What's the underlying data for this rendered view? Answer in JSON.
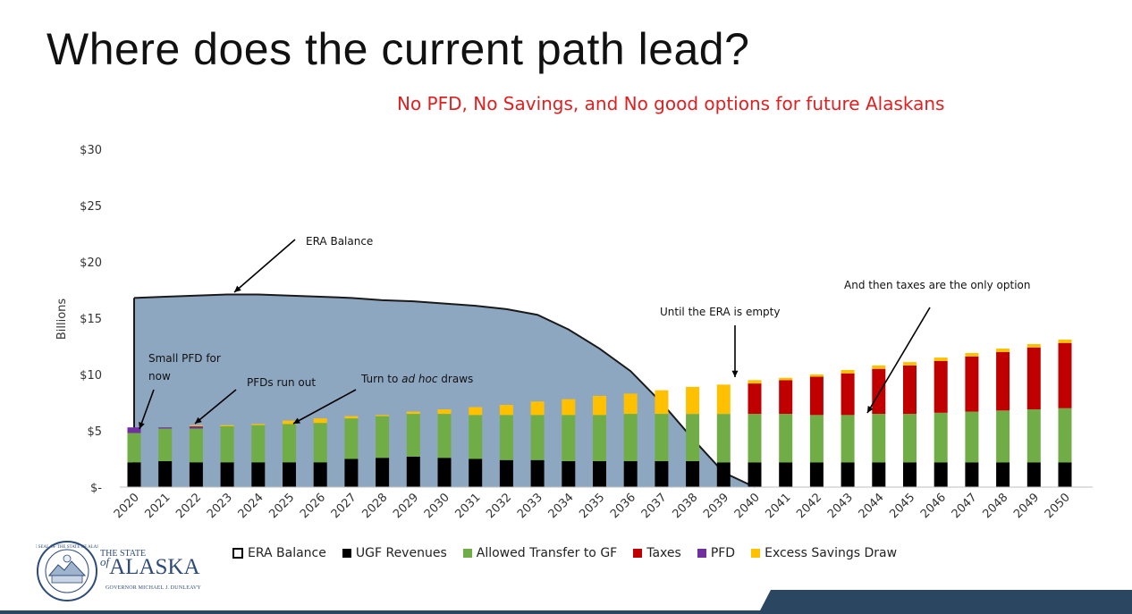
{
  "title": "Where does the current path lead?",
  "subtitle": "No PFD, No Savings, and No good options for future Alaskans",
  "logo": {
    "line1": "THE STATE",
    "line2_prefix": "of",
    "line2": "ALASKA",
    "line3": "GOVERNOR MICHAEL J. DUNLEAVY",
    "seal_text": "THE SEAL OF THE STATE OF ALASKA"
  },
  "colors": {
    "era_fill": "#8ea7c1",
    "era_line": "#1a1a1a",
    "ugf": "#000000",
    "transfer": "#70ad47",
    "taxes": "#c00000",
    "pfd": "#7030a0",
    "excess": "#ffc000",
    "subtitle": "#e02020",
    "brand_blue": "#2a4661"
  },
  "chart_data": {
    "type": "bar",
    "stacked": true,
    "ylabel": "Billions",
    "ylim": [
      0,
      30
    ],
    "yticks": [
      0,
      5,
      10,
      15,
      20,
      25,
      30
    ],
    "ytick_labels": [
      "$-",
      "$5",
      "$10",
      "$15",
      "$20",
      "$25",
      "$30"
    ],
    "grid": false,
    "legend_position": "bottom",
    "categories": [
      "2020",
      "2021",
      "2022",
      "2023",
      "2024",
      "2025",
      "2026",
      "2027",
      "2028",
      "2029",
      "2030",
      "2031",
      "2032",
      "2033",
      "2034",
      "2035",
      "2036",
      "2037",
      "2038",
      "2039",
      "2040",
      "2041",
      "2042",
      "2043",
      "2044",
      "2045",
      "2046",
      "2047",
      "2048",
      "2049",
      "2050"
    ],
    "area": {
      "name": "ERA Balance",
      "values": [
        16.8,
        16.9,
        17.0,
        17.1,
        17.1,
        17.0,
        16.9,
        16.8,
        16.6,
        16.5,
        16.3,
        16.1,
        15.8,
        15.3,
        14.0,
        12.3,
        10.3,
        7.5,
        4.3,
        1.3,
        0.0,
        0,
        0,
        0,
        0,
        0,
        0,
        0,
        0,
        0,
        0
      ]
    },
    "series": [
      {
        "name": "UGF Revenues",
        "values": [
          2.2,
          2.3,
          2.2,
          2.2,
          2.2,
          2.2,
          2.2,
          2.5,
          2.6,
          2.7,
          2.6,
          2.5,
          2.4,
          2.4,
          2.3,
          2.3,
          2.3,
          2.3,
          2.3,
          2.2,
          2.2,
          2.2,
          2.2,
          2.2,
          2.2,
          2.2,
          2.2,
          2.2,
          2.2,
          2.2,
          2.2
        ]
      },
      {
        "name": "Allowed Transfer to GF",
        "values": [
          2.6,
          2.9,
          3.0,
          3.2,
          3.3,
          3.4,
          3.5,
          3.6,
          3.7,
          3.8,
          3.9,
          3.9,
          4.0,
          4.0,
          4.1,
          4.1,
          4.2,
          4.2,
          4.2,
          4.3,
          4.3,
          4.3,
          4.2,
          4.2,
          4.3,
          4.3,
          4.4,
          4.5,
          4.6,
          4.7,
          4.8
        ]
      },
      {
        "name": "Taxes",
        "values": [
          0,
          0,
          0,
          0,
          0,
          0,
          0,
          0,
          0,
          0,
          0,
          0,
          0,
          0,
          0,
          0,
          0,
          0,
          0,
          0,
          2.7,
          3.0,
          3.4,
          3.7,
          4.0,
          4.3,
          4.6,
          4.9,
          5.2,
          5.5,
          5.8
        ]
      },
      {
        "name": "PFD",
        "values": [
          0.5,
          0.1,
          0.2,
          0,
          0,
          0,
          0,
          0,
          0,
          0,
          0,
          0,
          0,
          0,
          0,
          0,
          0,
          0,
          0,
          0,
          0,
          0,
          0,
          0,
          0,
          0,
          0,
          0,
          0,
          0,
          0
        ]
      },
      {
        "name": "Excess Savings Draw",
        "values": [
          0,
          0,
          0.1,
          0.1,
          0.1,
          0.3,
          0.4,
          0.2,
          0.1,
          0.2,
          0.4,
          0.7,
          0.9,
          1.2,
          1.4,
          1.7,
          1.8,
          2.1,
          2.4,
          2.6,
          0.3,
          0.2,
          0.2,
          0.3,
          0.3,
          0.3,
          0.3,
          0.3,
          0.3,
          0.3,
          0.3
        ]
      }
    ],
    "annotations": [
      {
        "text": "ERA Balance"
      },
      {
        "text": "Small PFD for now"
      },
      {
        "text": "PFDs run out"
      },
      {
        "text_prefix": "Turn to ",
        "text_italic": "ad hoc",
        "text_suffix": " draws"
      },
      {
        "text": "Until the ERA is empty"
      },
      {
        "text": "And then taxes are the only option"
      }
    ]
  },
  "legend": [
    {
      "label": "ERA Balance",
      "style": "outlined"
    },
    {
      "label": "UGF Revenues",
      "color": "#000000"
    },
    {
      "label": "Allowed Transfer to GF",
      "color": "#70ad47"
    },
    {
      "label": "Taxes",
      "color": "#c00000"
    },
    {
      "label": "PFD",
      "color": "#7030a0"
    },
    {
      "label": "Excess Savings Draw",
      "color": "#ffc000"
    }
  ]
}
